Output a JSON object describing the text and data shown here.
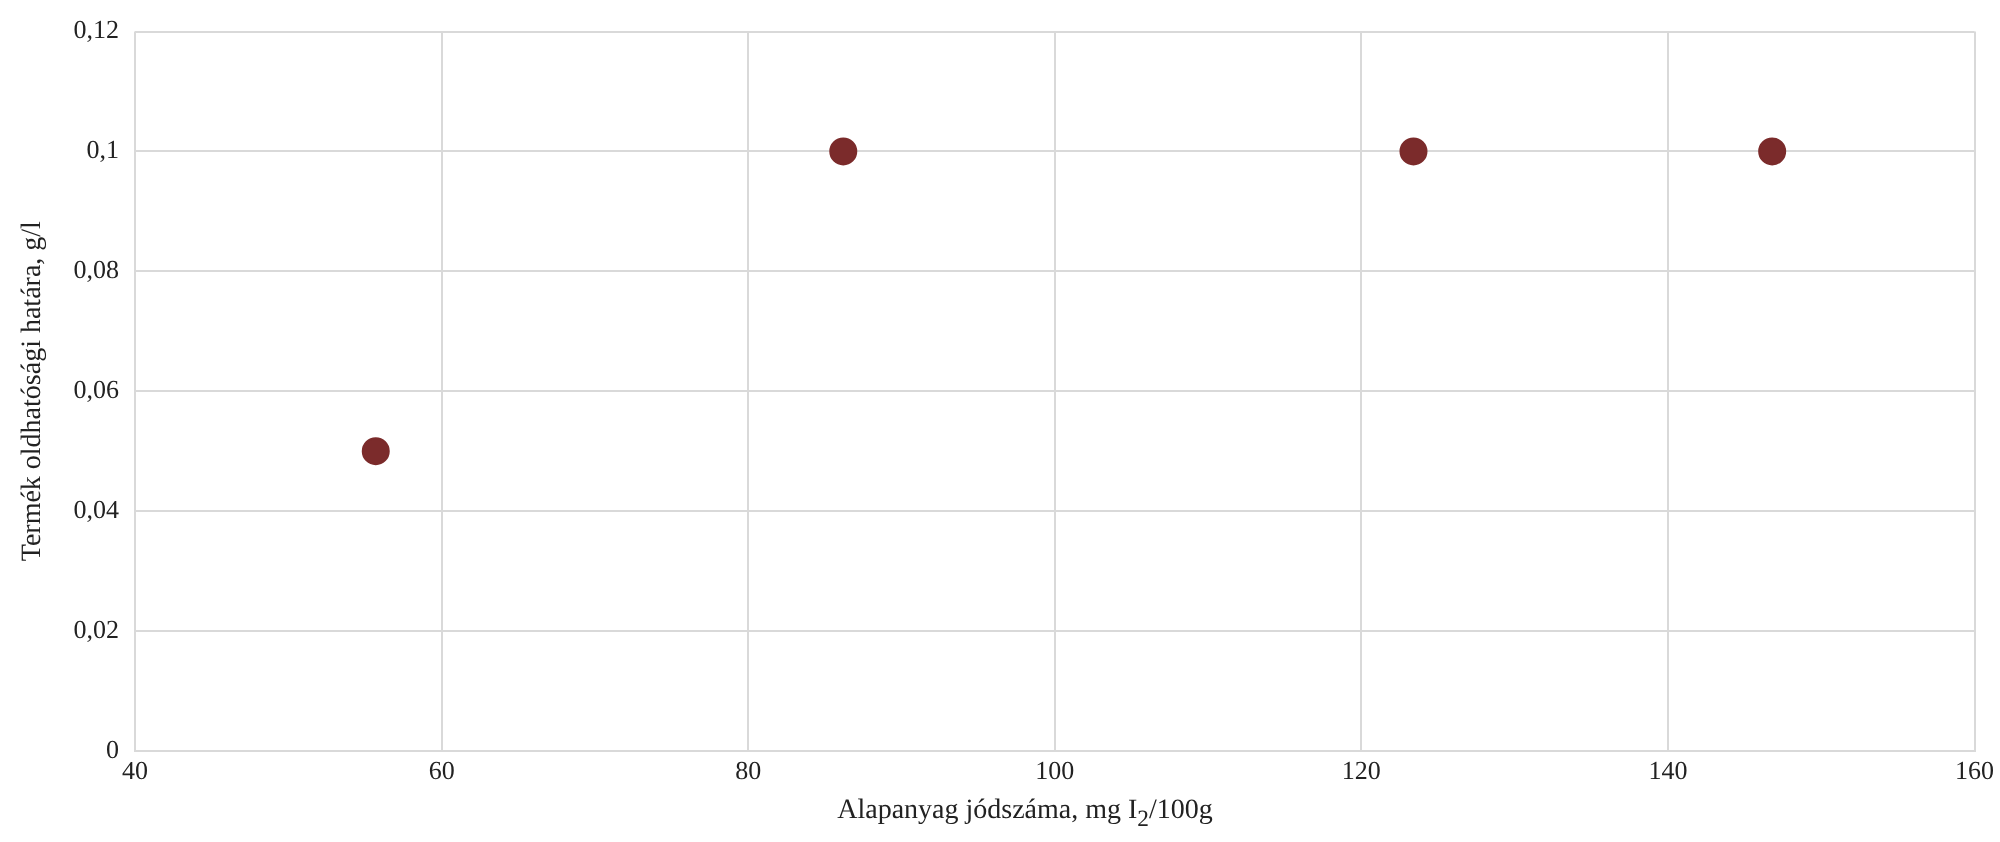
{
  "chart_data": {
    "type": "scatter",
    "xlabel": "Alapanyag jódszáma, mg I$_{2}$/100g",
    "ylabel": "Termék oldhatósági határa, g/l",
    "x": [
      55.7,
      86.2,
      123.4,
      146.8
    ],
    "series": [
      {
        "color": "#7b2b2b",
        "values": [
          0.05,
          0.1,
          0.1,
          0.1
        ]
      }
    ],
    "xlim": [
      40,
      160
    ],
    "xticks": [
      40,
      60,
      80,
      100,
      120,
      140,
      160
    ],
    "ylim": [
      0,
      0.12
    ],
    "yticks": [
      {
        "value": 0,
        "label": "0"
      },
      {
        "value": 0.02,
        "label": "0,02"
      },
      {
        "value": 0.04,
        "label": "0,04"
      },
      {
        "value": 0.06,
        "label": "0,06"
      },
      {
        "value": 0.08,
        "label": "0,08"
      },
      {
        "value": 0.1,
        "label": "0,1"
      },
      {
        "value": 0.12,
        "label": "0,12"
      }
    ],
    "grid": true,
    "legend": false,
    "marker": "circle"
  }
}
